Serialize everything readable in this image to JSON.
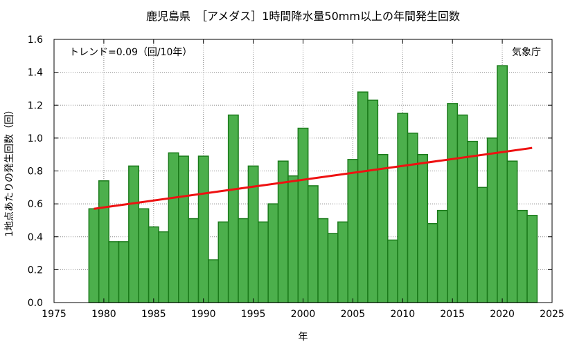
{
  "chart_data": {
    "type": "bar",
    "title": "鹿児島県　［アメダス］1時間降水量50mm以上の年間発生回数",
    "xlabel": "年",
    "ylabel": "1地点あたりの発生回数（回）",
    "xlim": [
      1975,
      2025
    ],
    "ylim": [
      0.0,
      1.6
    ],
    "x_ticks": [
      1975,
      1980,
      1985,
      1990,
      1995,
      2000,
      2005,
      2010,
      2015,
      2020,
      2025
    ],
    "y_ticks": [
      0.0,
      0.2,
      0.4,
      0.6,
      0.8,
      1.0,
      1.2,
      1.4,
      1.6
    ],
    "y_tick_labels": [
      "0.0",
      "0.2",
      "0.4",
      "0.6",
      "0.8",
      "1.0",
      "1.2",
      "1.4",
      "1.6"
    ],
    "grid": true,
    "bar_color": "#4caf4c",
    "bar_edge_color": "#1a7a1a",
    "trend_color": "#ee1111",
    "x": [
      1979,
      1980,
      1981,
      1982,
      1983,
      1984,
      1985,
      1986,
      1987,
      1988,
      1989,
      1990,
      1991,
      1992,
      1993,
      1994,
      1995,
      1996,
      1997,
      1998,
      1999,
      2000,
      2001,
      2002,
      2003,
      2004,
      2005,
      2006,
      2007,
      2008,
      2009,
      2010,
      2011,
      2012,
      2013,
      2014,
      2015,
      2016,
      2017,
      2018,
      2019,
      2020,
      2021,
      2022,
      2023
    ],
    "values": [
      0.57,
      0.74,
      0.37,
      0.37,
      0.83,
      0.57,
      0.46,
      0.43,
      0.91,
      0.89,
      0.51,
      0.89,
      0.26,
      0.49,
      1.14,
      0.51,
      0.83,
      0.49,
      0.6,
      0.86,
      0.77,
      1.06,
      0.71,
      0.51,
      0.42,
      0.49,
      0.87,
      1.28,
      1.23,
      0.9,
      0.38,
      1.15,
      1.03,
      0.9,
      0.48,
      0.56,
      1.21,
      1.14,
      0.98,
      0.7,
      1.0,
      1.44,
      0.86,
      0.56,
      0.53
    ],
    "trend_line": {
      "x": [
        1979,
        2023
      ],
      "y": [
        0.57,
        0.94
      ]
    },
    "trend_text": "トレンド=0.09（回/10年）",
    "source": "気象庁"
  }
}
